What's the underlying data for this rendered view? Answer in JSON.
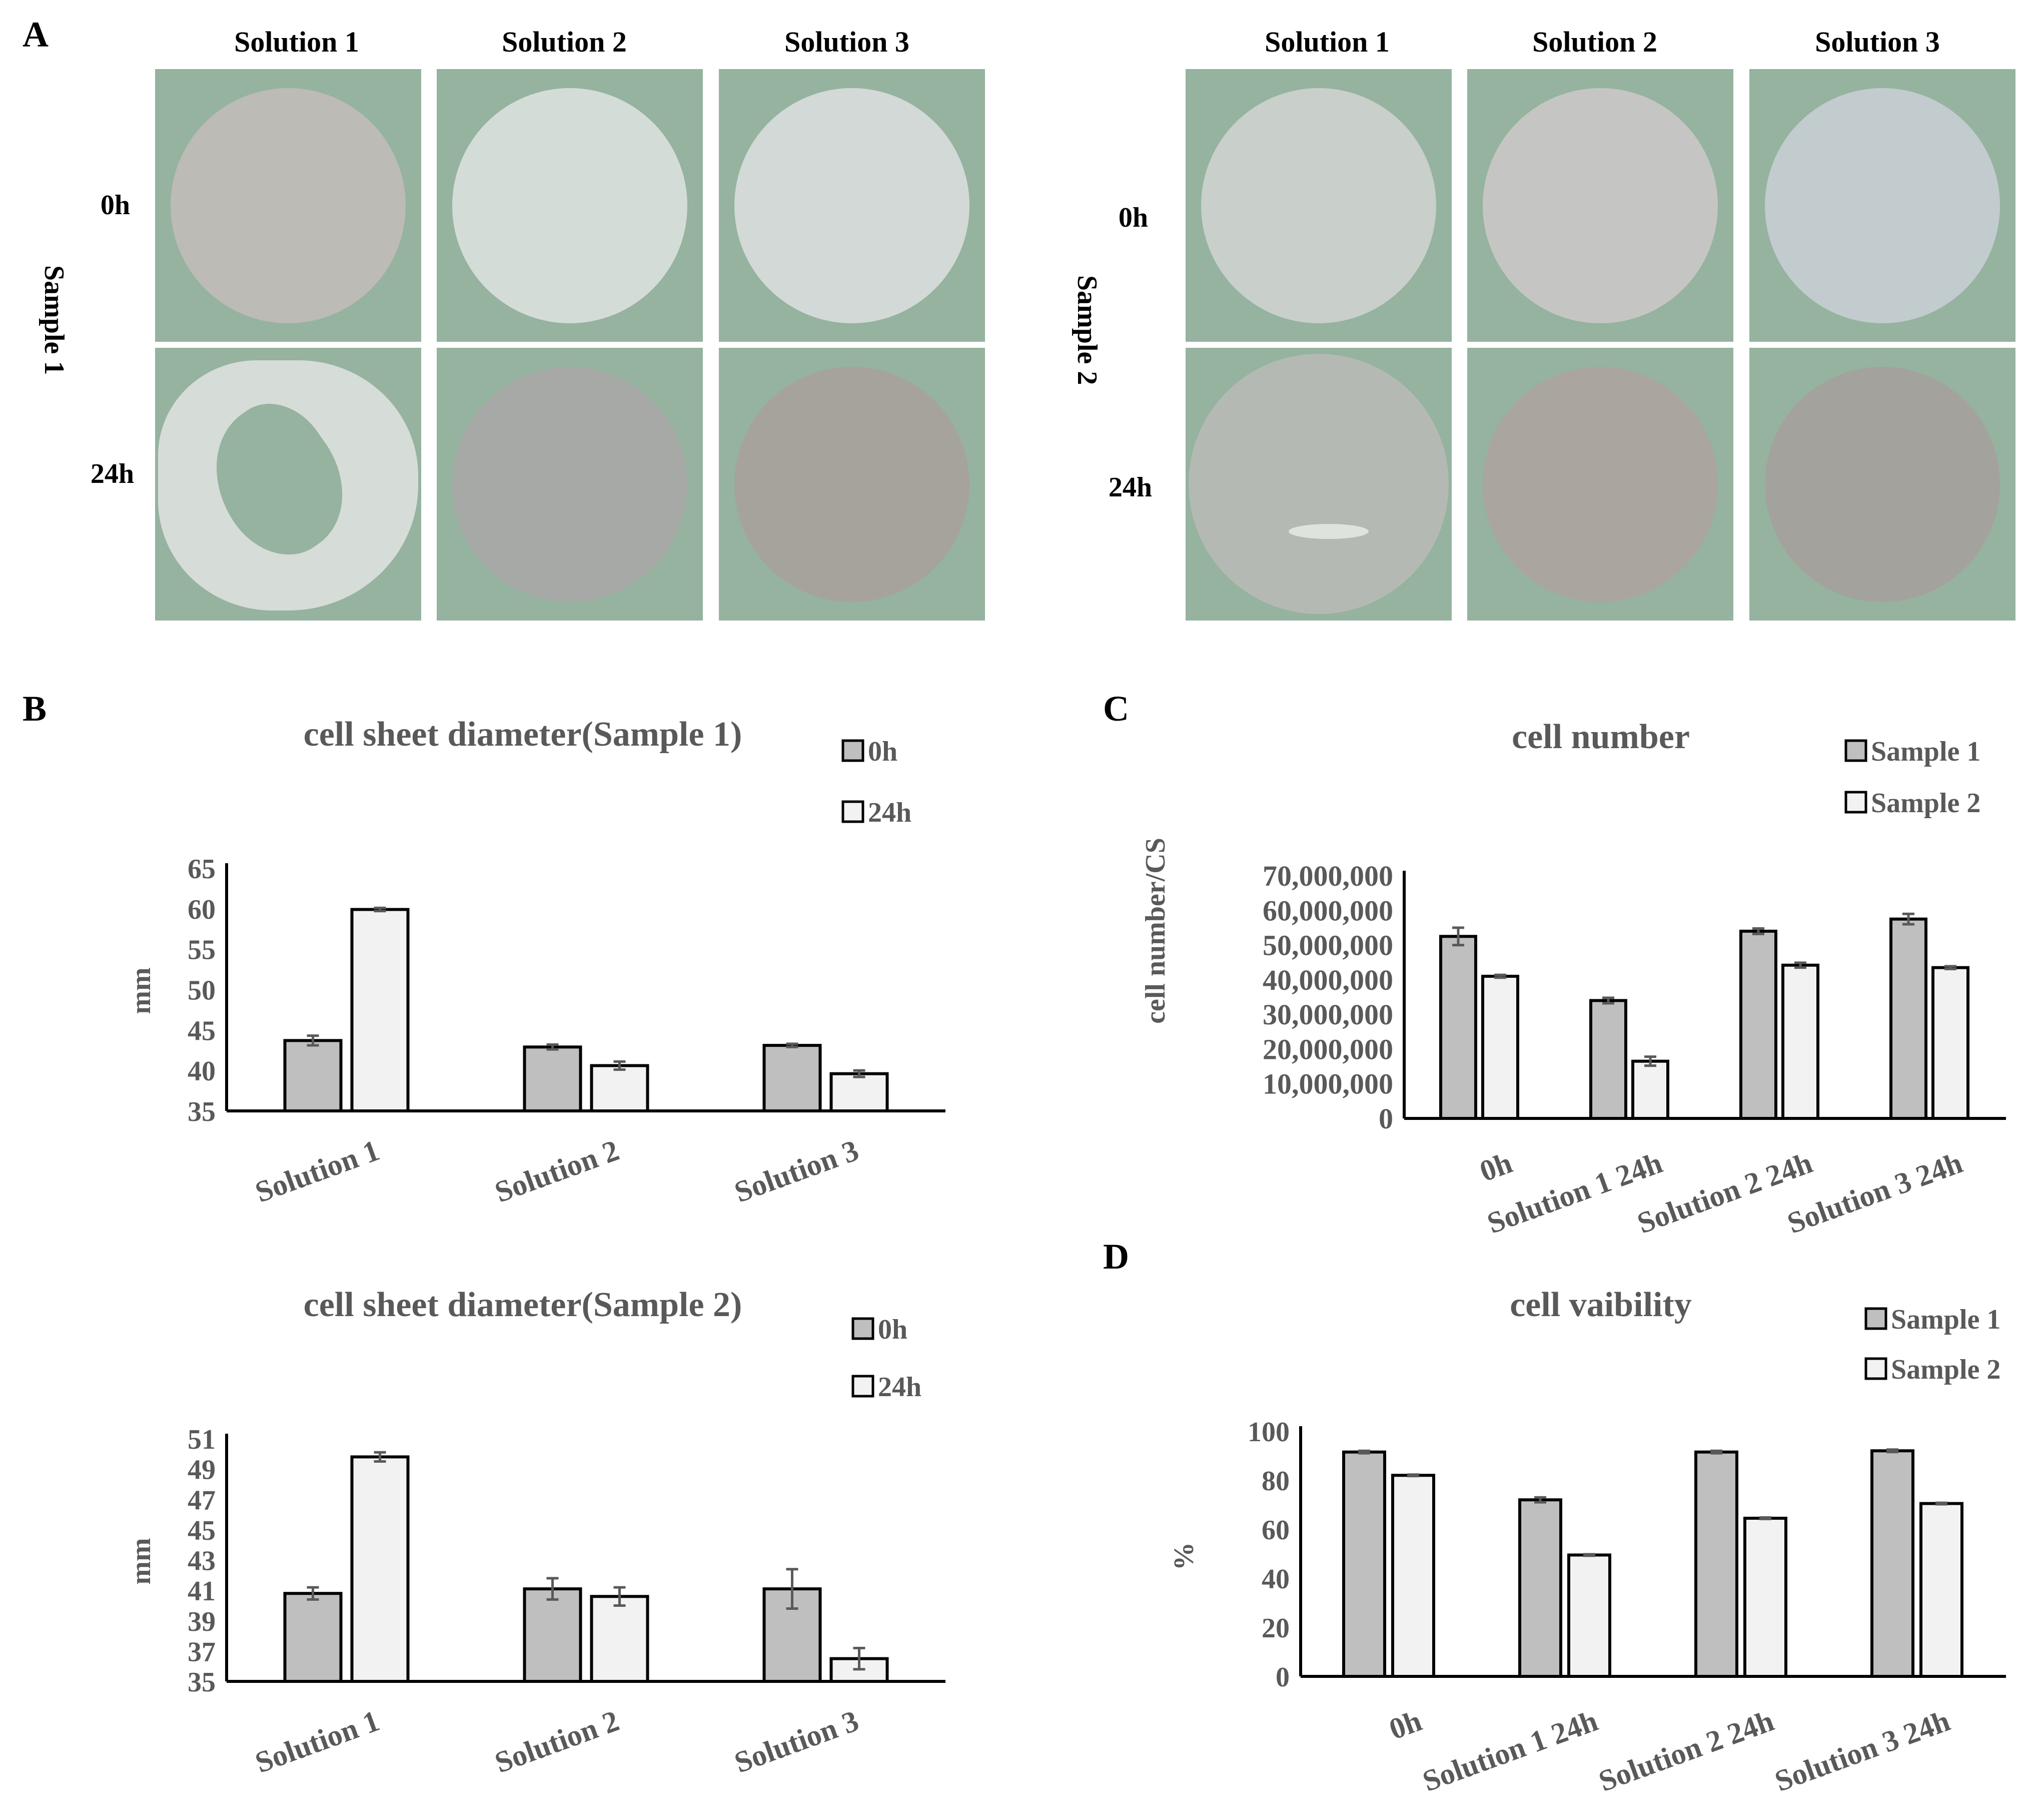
{
  "panels": {
    "a": "A",
    "b": "B",
    "c": "C",
    "d": "D"
  },
  "panel_a": {
    "columns": [
      "Solution 1",
      "Solution 2",
      "Solution 3"
    ],
    "rows": [
      "0h",
      "24h"
    ],
    "samples": [
      "Sample 1",
      "Sample 2"
    ],
    "colors": {
      "background": "#95b39f"
    },
    "tiles": [
      [
        [
          {
            "color": "#bdbbb6",
            "state": "disc"
          },
          {
            "color": "#d4dcd8",
            "state": "disc"
          },
          {
            "color": "#d2d9d6",
            "state": "disc"
          }
        ],
        [
          {
            "color": "#d6dcd8",
            "state": "torn"
          },
          {
            "color": "#a7a9a6",
            "state": "disc"
          },
          {
            "color": "#a6a39c",
            "state": "disc"
          }
        ]
      ],
      [
        [
          {
            "color": "#c9cfca",
            "state": "disc"
          },
          {
            "color": "#c5c6c3",
            "state": "disc"
          },
          {
            "color": "#c2cbce",
            "state": "disc"
          }
        ],
        [
          {
            "color": "#b5b9b4",
            "state": "hole"
          },
          {
            "color": "#aaa69d",
            "state": "disc"
          },
          {
            "color": "#a4a29d",
            "state": "disc"
          }
        ]
      ]
    ]
  },
  "chart_data": [
    {
      "id": "B1",
      "type": "bar",
      "title": "cell sheet diameter(Sample 1)",
      "ylabel": "mm",
      "xlabel": "",
      "categories": [
        "Solution 1",
        "Solution 2",
        "Solution 3"
      ],
      "series": [
        {
          "name": "0h",
          "color": "#bfbfbf",
          "values": [
            43.7,
            42.9,
            43.1
          ],
          "errors": [
            0.6,
            0.3,
            0.2
          ]
        },
        {
          "name": "24h",
          "color": "#f2f2f2",
          "values": [
            59.9,
            40.6,
            39.6
          ],
          "errors": [
            0.2,
            0.5,
            0.4
          ]
        }
      ],
      "ylim": [
        35,
        65
      ],
      "yticks": [
        "35",
        "40",
        "45",
        "50",
        "55",
        "60",
        "65"
      ],
      "legend": "top-right",
      "grid": false
    },
    {
      "id": "B2",
      "type": "bar",
      "title": "cell sheet diameter(Sample 2)",
      "ylabel": "mm",
      "xlabel": "",
      "categories": [
        "Solution 1",
        "Solution 2",
        "Solution 3"
      ],
      "series": [
        {
          "name": "0h",
          "color": "#bfbfbf",
          "values": [
            40.8,
            41.1,
            41.1
          ],
          "errors": [
            0.4,
            0.7,
            1.3
          ]
        },
        {
          "name": "24h",
          "color": "#f2f2f2",
          "values": [
            49.8,
            40.6,
            36.5
          ],
          "errors": [
            0.3,
            0.6,
            0.7
          ]
        }
      ],
      "ylim": [
        35,
        51
      ],
      "yticks": [
        "35",
        "37",
        "39",
        "41",
        "43",
        "45",
        "47",
        "49",
        "51"
      ],
      "legend": "top-right",
      "grid": false
    },
    {
      "id": "C",
      "type": "bar",
      "title": "cell number",
      "ylabel": "cell number/CS",
      "xlabel": "",
      "categories": [
        "0h",
        "Solution 1 24h",
        "Solution 2 24h",
        "Solution 3 24h"
      ],
      "series": [
        {
          "name": "Sample 1",
          "color": "#bfbfbf",
          "values": [
            52500000,
            34000000,
            54000000,
            57500000
          ],
          "errors": [
            2500000,
            800000,
            800000,
            1500000
          ]
        },
        {
          "name": "Sample 2",
          "color": "#f2f2f2",
          "values": [
            41000000,
            16500000,
            44200000,
            43500000
          ],
          "errors": [
            400000,
            1300000,
            700000,
            400000
          ]
        }
      ],
      "ylim": [
        0,
        70000000
      ],
      "yticks": [
        "0",
        "10,000,000",
        "20,000,000",
        "30,000,000",
        "40,000,000",
        "50,000,000",
        "60,000,000",
        "70,000,000"
      ],
      "legend": "top-right",
      "grid": false
    },
    {
      "id": "D",
      "type": "bar",
      "title": "cell vaibility",
      "ylabel": "%",
      "xlabel": "",
      "categories": [
        "0h",
        "Solution 1 24h",
        "Solution 2 24h",
        "Solution 3 24h"
      ],
      "series": [
        {
          "name": "Sample 1",
          "color": "#bfbfbf",
          "values": [
            91.5,
            72,
            91.5,
            92
          ],
          "errors": [
            0.5,
            1,
            0.5,
            0.5
          ]
        },
        {
          "name": "Sample 2",
          "color": "#f2f2f2",
          "values": [
            82,
            49.5,
            64.5,
            70.5
          ],
          "errors": [
            0.3,
            0.3,
            0.3,
            0.3
          ]
        }
      ],
      "ylim": [
        0,
        100
      ],
      "yticks": [
        "0",
        "20",
        "40",
        "60",
        "80",
        "100"
      ],
      "legend": "top-right",
      "grid": false
    }
  ]
}
